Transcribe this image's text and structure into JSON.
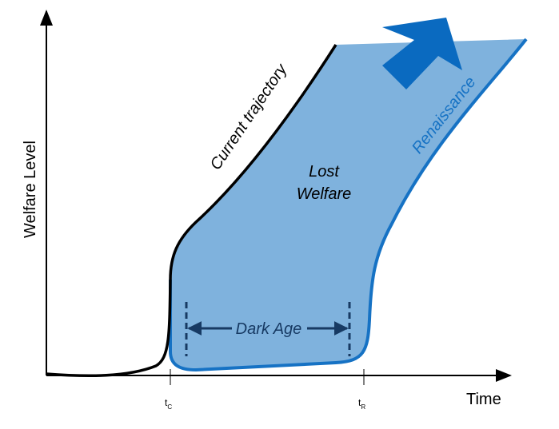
{
  "axes": {
    "x_label": "Time",
    "y_label": "Welfare Level",
    "tick_tc": {
      "base": "t",
      "sub": "C"
    },
    "tick_tr": {
      "base": "t",
      "sub": "R"
    }
  },
  "labels": {
    "current_trajectory": "Current trajectory",
    "renaissance": "Renaissance",
    "lost_welfare_line1": "Lost",
    "lost_welfare_line2": "Welfare",
    "dark_age": "Dark Age"
  },
  "colors": {
    "axis": "#000000",
    "current_trajectory": "#000000",
    "lost_welfare_fill": "#7fb2dd",
    "renaissance_curve": "#1672c4",
    "renaissance_text": "#1672c4",
    "arrow": "#0a6ac0",
    "dark_age": "#173a63"
  },
  "icons": {
    "upward_arrow": "arrow-up-right-icon"
  }
}
